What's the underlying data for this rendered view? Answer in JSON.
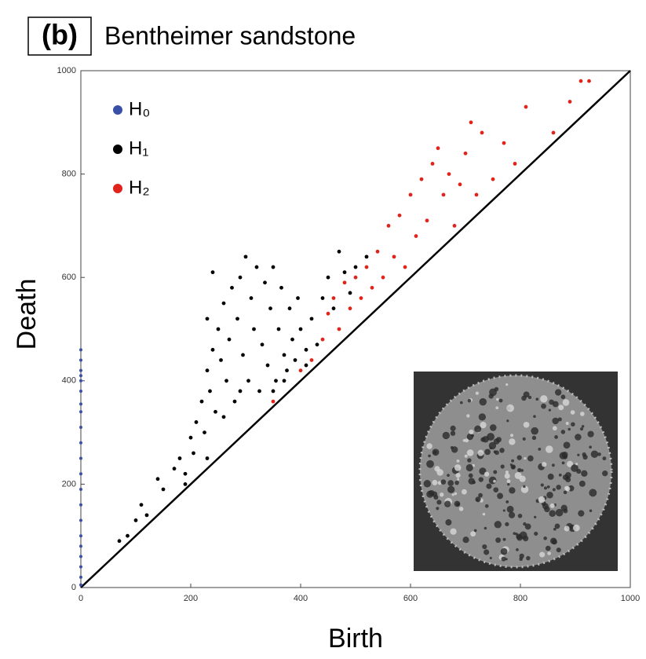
{
  "chart_data": {
    "type": "scatter",
    "panel_label": "(b)",
    "title": "Bentheimer sandstone",
    "x_label": "Birth",
    "y_label": "Death",
    "xlim": [
      0,
      1000
    ],
    "ylim": [
      0,
      1000
    ],
    "xticks": [
      0,
      200,
      400,
      600,
      800,
      1000
    ],
    "yticks": [
      0,
      200,
      400,
      600,
      800,
      1000
    ],
    "legend": "upper left",
    "series": [
      {
        "name": "H₀",
        "color": "#3a4fa8",
        "x": [
          0,
          0,
          0,
          0,
          0,
          0,
          0,
          0,
          0,
          0,
          0,
          0,
          0,
          0,
          0,
          0,
          0,
          0,
          0,
          0,
          0
        ],
        "values": [
          5,
          20,
          40,
          60,
          80,
          100,
          130,
          160,
          190,
          220,
          250,
          280,
          310,
          340,
          355,
          380,
          400,
          410,
          420,
          440,
          460
        ]
      },
      {
        "name": "H₁",
        "color": "#000000",
        "x": [
          70,
          85,
          100,
          110,
          120,
          140,
          150,
          170,
          180,
          190,
          200,
          205,
          210,
          220,
          225,
          230,
          235,
          240,
          245,
          250,
          255,
          260,
          265,
          270,
          275,
          280,
          285,
          290,
          295,
          300,
          305,
          310,
          315,
          320,
          325,
          330,
          335,
          340,
          345,
          350,
          355,
          360,
          365,
          370,
          375,
          380,
          385,
          390,
          395,
          400,
          410,
          420,
          430,
          440,
          450,
          460,
          470,
          480,
          490,
          500,
          520,
          240,
          230,
          260,
          290,
          350,
          370,
          410,
          190,
          230
        ],
        "values": [
          90,
          100,
          130,
          160,
          140,
          210,
          190,
          230,
          250,
          220,
          290,
          260,
          320,
          360,
          300,
          420,
          380,
          460,
          340,
          500,
          440,
          550,
          400,
          480,
          580,
          360,
          520,
          600,
          450,
          640,
          400,
          560,
          500,
          620,
          380,
          470,
          590,
          430,
          540,
          620,
          400,
          500,
          580,
          450,
          420,
          540,
          480,
          440,
          560,
          500,
          460,
          520,
          470,
          560,
          600,
          540,
          650,
          610,
          570,
          620,
          640,
          610,
          520,
          330,
          380,
          380,
          400,
          430,
          200,
          250
        ]
      },
      {
        "name": "H₂",
        "color": "#e0241b",
        "x": [
          350,
          400,
          420,
          440,
          450,
          460,
          470,
          480,
          490,
          500,
          510,
          520,
          530,
          540,
          550,
          560,
          570,
          580,
          590,
          600,
          610,
          620,
          630,
          640,
          650,
          660,
          670,
          680,
          690,
          700,
          710,
          720,
          730,
          750,
          770,
          790,
          810,
          860,
          890,
          910,
          925
        ],
        "values": [
          360,
          420,
          440,
          480,
          530,
          560,
          500,
          590,
          540,
          600,
          560,
          620,
          580,
          650,
          600,
          700,
          640,
          720,
          620,
          760,
          680,
          790,
          710,
          820,
          850,
          760,
          800,
          700,
          780,
          840,
          900,
          760,
          880,
          790,
          860,
          820,
          930,
          880,
          940,
          980,
          980
        ]
      }
    ]
  }
}
